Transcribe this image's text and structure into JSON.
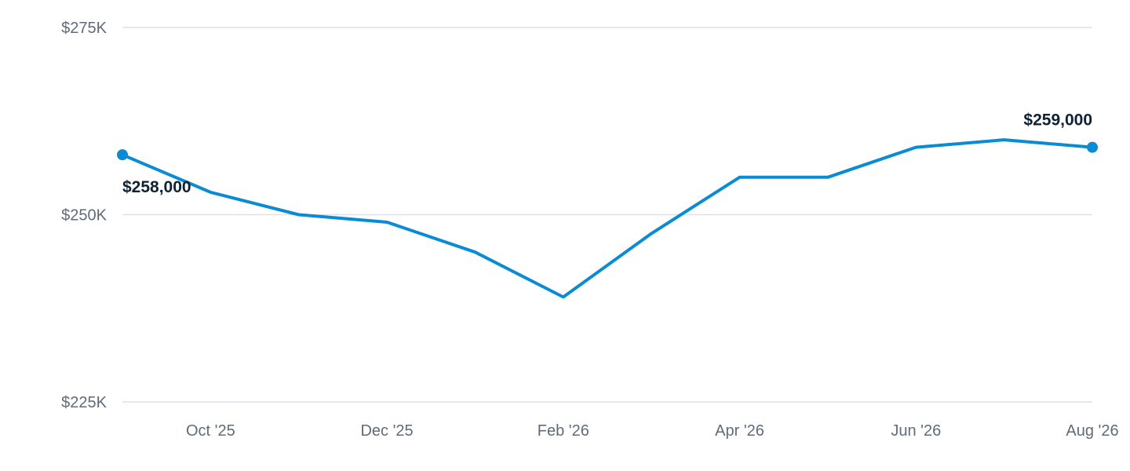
{
  "chart_data": {
    "type": "line",
    "title": "",
    "xlabel": "",
    "ylabel": "",
    "x": [
      "2025-09-01",
      "2025-10-01",
      "2025-11-01",
      "2025-12-01",
      "2026-01-01",
      "2026-02-01",
      "2026-03-01",
      "2026-04-01",
      "2026-05-01",
      "2026-06-01",
      "2026-07-01",
      "2026-08-01"
    ],
    "x_tick_labels": [
      "Oct '25",
      "Dec '25",
      "Feb '26",
      "Apr '26",
      "Jun '26",
      "Aug '26"
    ],
    "x_tick_values": [
      "2025-10-01",
      "2025-12-01",
      "2026-02-01",
      "2026-04-01",
      "2026-06-01",
      "2026-08-01"
    ],
    "series": [
      {
        "values": [
          258000,
          253000,
          250000,
          249000,
          245000,
          239000,
          247500,
          255000,
          255000,
          259000,
          260000,
          259000
        ],
        "color": "#0b8bd3"
      }
    ],
    "y_ticks": [
      225000,
      250000,
      275000
    ],
    "y_tick_labels": [
      "$225K",
      "$250K",
      "$275K"
    ],
    "ylim": [
      225000,
      275000
    ],
    "grid": true,
    "legend": "none",
    "annotations": [
      {
        "x": "2025-09-01",
        "value": 258000,
        "label": "$258,000",
        "marker": true
      },
      {
        "x": "2026-08-01",
        "value": 259000,
        "label": "$259,000",
        "marker": true
      }
    ]
  }
}
